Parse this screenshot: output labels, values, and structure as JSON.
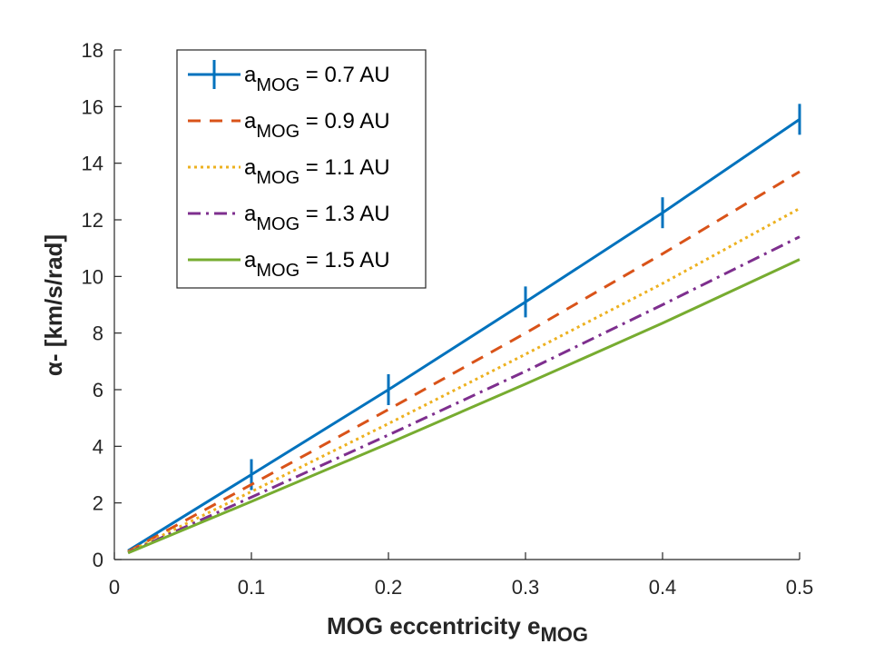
{
  "chart_data": {
    "type": "line",
    "xlabel": {
      "main": "MOG eccentricity e",
      "sub": "MOG"
    },
    "ylabel": "α- [km/s/rad]",
    "xlim": [
      0,
      0.5
    ],
    "ylim": [
      0,
      18
    ],
    "xticks": [
      0,
      0.1,
      0.2,
      0.3,
      0.4,
      0.5
    ],
    "xtick_labels": [
      "0",
      "0.1",
      "0.2",
      "0.3",
      "0.4",
      "0.5"
    ],
    "yticks": [
      0,
      2,
      4,
      6,
      8,
      10,
      12,
      14,
      16,
      18
    ],
    "ytick_labels": [
      "0",
      "2",
      "4",
      "6",
      "8",
      "10",
      "12",
      "14",
      "16",
      "18"
    ],
    "grid": false,
    "legend_position": "top-left",
    "series": [
      {
        "name": "a_MOG = 0.7 AU",
        "legend_main": "a",
        "legend_sub": "MOG",
        "legend_rest": " = 0.7 AU",
        "color": "#0072BD",
        "style": "solid",
        "marker": "vertical-bar",
        "x": [
          0.01,
          0.1,
          0.2,
          0.3,
          0.4,
          0.5
        ],
        "y": [
          0.31,
          3.0,
          6.0,
          9.1,
          12.25,
          15.55
        ]
      },
      {
        "name": "a_MOG = 0.9 AU",
        "legend_main": "a",
        "legend_sub": "MOG",
        "legend_rest": " = 0.9 AU",
        "color": "#D95319",
        "style": "dashed",
        "x": [
          0.01,
          0.1,
          0.2,
          0.3,
          0.4,
          0.5
        ],
        "y": [
          0.28,
          2.65,
          5.3,
          8.0,
          10.8,
          13.7
        ]
      },
      {
        "name": "a_MOG = 1.1 AU",
        "legend_main": "a",
        "legend_sub": "MOG",
        "legend_rest": " = 1.1 AU",
        "color": "#EDB120",
        "style": "dotted",
        "x": [
          0.01,
          0.1,
          0.2,
          0.3,
          0.4,
          0.5
        ],
        "y": [
          0.26,
          2.4,
          4.8,
          7.25,
          9.75,
          12.4
        ]
      },
      {
        "name": "a_MOG = 1.3 AU",
        "legend_main": "a",
        "legend_sub": "MOG",
        "legend_rest": " = 1.3 AU",
        "color": "#7E2F8E",
        "style": "dashdot",
        "x": [
          0.01,
          0.1,
          0.2,
          0.3,
          0.4,
          0.5
        ],
        "y": [
          0.24,
          2.2,
          4.4,
          6.65,
          9.0,
          11.4
        ]
      },
      {
        "name": "a_MOG = 1.5 AU",
        "legend_main": "a",
        "legend_sub": "MOG",
        "legend_rest": " = 1.5 AU",
        "color": "#77AC30",
        "style": "solid",
        "x": [
          0.01,
          0.1,
          0.2,
          0.3,
          0.4,
          0.5
        ],
        "y": [
          0.23,
          2.05,
          4.1,
          6.2,
          8.35,
          10.6
        ]
      }
    ]
  }
}
